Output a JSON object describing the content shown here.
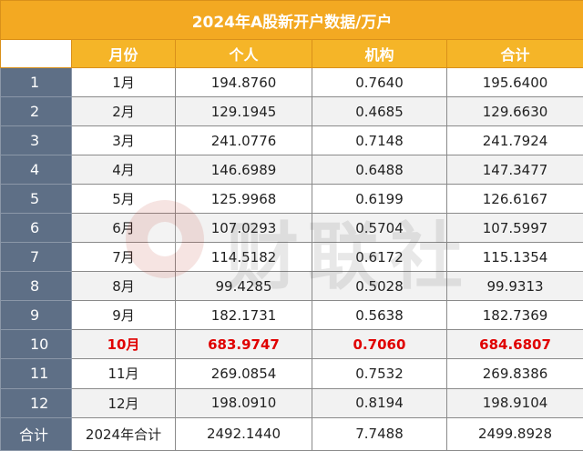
{
  "title": "2024年A股新开户数据/万户",
  "columns": [
    "",
    "月份",
    "个人",
    "机构",
    "合计"
  ],
  "rows": [
    {
      "index": "1",
      "month": "1月",
      "individual": "194.8760",
      "institution": "0.7640",
      "total": "195.6400"
    },
    {
      "index": "2",
      "month": "2月",
      "individual": "129.1945",
      "institution": "0.4685",
      "total": "129.6630"
    },
    {
      "index": "3",
      "month": "3月",
      "individual": "241.0776",
      "institution": "0.7148",
      "total": "241.7924"
    },
    {
      "index": "4",
      "month": "4月",
      "individual": "146.6989",
      "institution": "0.6488",
      "total": "147.3477"
    },
    {
      "index": "5",
      "month": "5月",
      "individual": "125.9968",
      "institution": "0.6199",
      "total": "126.6167"
    },
    {
      "index": "6",
      "month": "6月",
      "individual": "107.0293",
      "institution": "0.5704",
      "total": "107.5997"
    },
    {
      "index": "7",
      "month": "7月",
      "individual": "114.5182",
      "institution": "0.6172",
      "total": "115.1354"
    },
    {
      "index": "8",
      "month": "8月",
      "individual": "99.4285",
      "institution": "0.5028",
      "total": "99.9313"
    },
    {
      "index": "9",
      "month": "9月",
      "individual": "182.1731",
      "institution": "0.5638",
      "total": "182.7369"
    },
    {
      "index": "10",
      "month": "10月",
      "individual": "683.9747",
      "institution": "0.7060",
      "total": "684.6807"
    },
    {
      "index": "11",
      "month": "11月",
      "individual": "269.0854",
      "institution": "0.7532",
      "total": "269.8386"
    },
    {
      "index": "12",
      "month": "12月",
      "individual": "198.0910",
      "institution": "0.8194",
      "total": "198.9104"
    }
  ],
  "total_row": {
    "index": "合计",
    "month": "2024年合计",
    "individual": "2492.1440",
    "institution": "7.7488",
    "total": "2499.8928"
  },
  "highlight_row_index": 9,
  "watermark_text": "财联社",
  "colors": {
    "header": "#f5b528",
    "index_column": "#5e6f86",
    "highlight_text": "#e00000"
  }
}
